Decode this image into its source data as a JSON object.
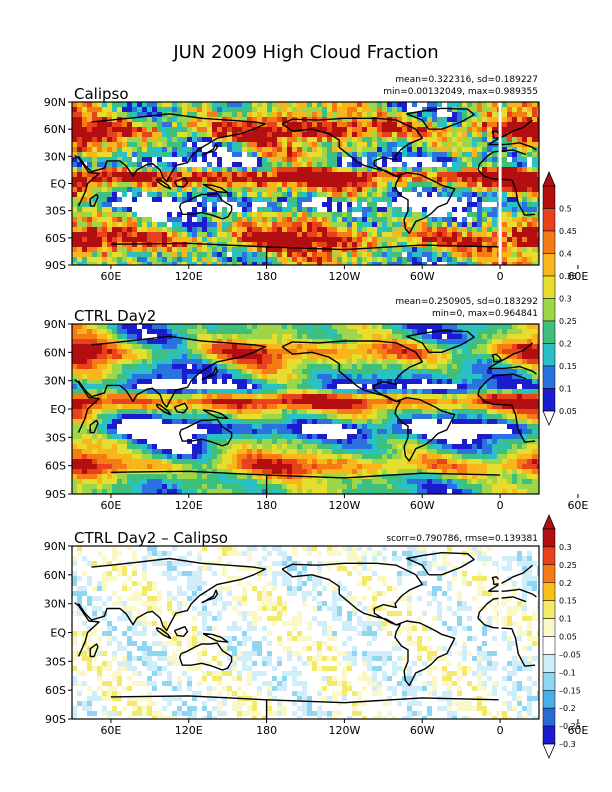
{
  "figure": {
    "title": "JUN 2009 High Cloud Fraction"
  },
  "panels": [
    {
      "id": "calipso",
      "label": "Calipso",
      "stats": [
        "mean=0.322316, sd=0.189227",
        "min=0.00132049, max=0.989355"
      ],
      "field": "obs"
    },
    {
      "id": "ctrl",
      "label": "CTRL Day2",
      "stats": [
        "mean=0.250905, sd=0.183292",
        "min=0, max=0.964841"
      ],
      "field": "model"
    },
    {
      "id": "diff",
      "label": "CTRL Day2 – Calipso",
      "stats": [
        "scorr=0.790786, rmse=0.139381"
      ],
      "field": "diff"
    }
  ],
  "lat_ticks": [
    "90N",
    "60N",
    "30N",
    "EQ",
    "30S",
    "60S",
    "90S"
  ],
  "lon_ticks": [
    "60E",
    "120E",
    "180",
    "120W",
    "60W",
    "0",
    "60E"
  ],
  "colorbar_main": {
    "labels": [
      "0.5",
      "0.45",
      "0.4",
      "0.35",
      "0.3",
      "0.25",
      "0.2",
      "0.15",
      "0.1",
      "0.05"
    ],
    "colors": [
      "#b30e10",
      "#e8421c",
      "#f77b14",
      "#f9b51c",
      "#e6de2e",
      "#9ed64a",
      "#3fbf7c",
      "#29c1c3",
      "#2a72e0",
      "#1c1ccf"
    ]
  },
  "colorbar_diff": {
    "labels": [
      "0.3",
      "0.25",
      "0.2",
      "0.15",
      "0.1",
      "0.05",
      "–0.05",
      "–0.1",
      "–0.15",
      "–0.2",
      "–0.25",
      "–0.3"
    ],
    "colors": [
      "#b30e10",
      "#e8421c",
      "#f77b14",
      "#f9c01c",
      "#f3ea6a",
      "#fbf8c8",
      "#ffffff",
      "#cfeefa",
      "#8fd6f2",
      "#4aaee8",
      "#2a6ad6",
      "#1c1ccf"
    ]
  }
}
